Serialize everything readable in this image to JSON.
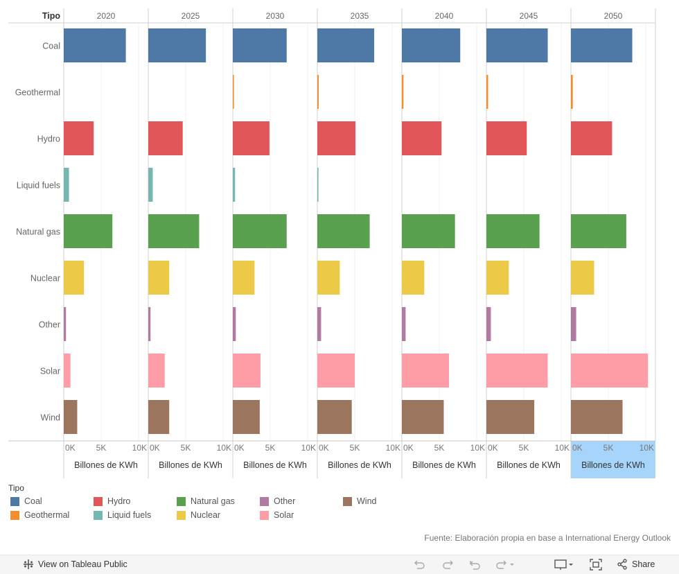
{
  "chart_data": {
    "type": "bar",
    "orientation": "horizontal",
    "row_header": "Tipo",
    "columns": [
      "2020",
      "2025",
      "2030",
      "2035",
      "2040",
      "2045",
      "2050"
    ],
    "categories": [
      "Coal",
      "Geothermal",
      "Hydro",
      "Liquid fuels",
      "Natural gas",
      "Nuclear",
      "Other",
      "Solar",
      "Wind"
    ],
    "colors": {
      "Coal": "#4e79a7",
      "Geothermal": "#f28e2b",
      "Hydro": "#e15759",
      "Liquid fuels": "#76b7b2",
      "Natural gas": "#59a14f",
      "Nuclear": "#edc948",
      "Other": "#b07aa1",
      "Solar": "#ff9da7",
      "Wind": "#9c755f"
    },
    "values": {
      "Coal": [
        8300,
        7700,
        7200,
        7600,
        7800,
        8200,
        8200
      ],
      "Geothermal": [
        0,
        0,
        150,
        180,
        220,
        230,
        250
      ],
      "Hydro": [
        4000,
        4600,
        4900,
        5100,
        5300,
        5400,
        5500
      ],
      "Liquid fuels": [
        700,
        600,
        300,
        150,
        0,
        0,
        0
      ],
      "Natural gas": [
        6500,
        6800,
        7200,
        7000,
        7100,
        7100,
        7400
      ],
      "Nuclear": [
        2700,
        2800,
        2900,
        3000,
        3000,
        3000,
        3100
      ],
      "Other": [
        300,
        300,
        400,
        500,
        500,
        600,
        700
      ],
      "Solar": [
        900,
        2200,
        3700,
        5000,
        6300,
        8200,
        10300
      ],
      "Wind": [
        1800,
        2800,
        3600,
        4600,
        5600,
        6400,
        6900
      ]
    },
    "xlim": [
      0,
      10000
    ],
    "ticks": [
      0,
      5000,
      10000
    ],
    "tick_labels": [
      "0K",
      "5K",
      "10K"
    ],
    "xlabel": "Billones de KWh",
    "grid": true,
    "highlighted_column": "2050"
  },
  "legend": {
    "title": "Tipo",
    "items": [
      "Coal",
      "Geothermal",
      "Hydro",
      "Liquid fuels",
      "Natural gas",
      "Nuclear",
      "Other",
      "Solar",
      "Wind"
    ]
  },
  "source": "Fuente: Elaboración propia en base a International Energy Outlook",
  "toolbar": {
    "view_label": "View on Tableau Public",
    "share_label": "Share"
  }
}
